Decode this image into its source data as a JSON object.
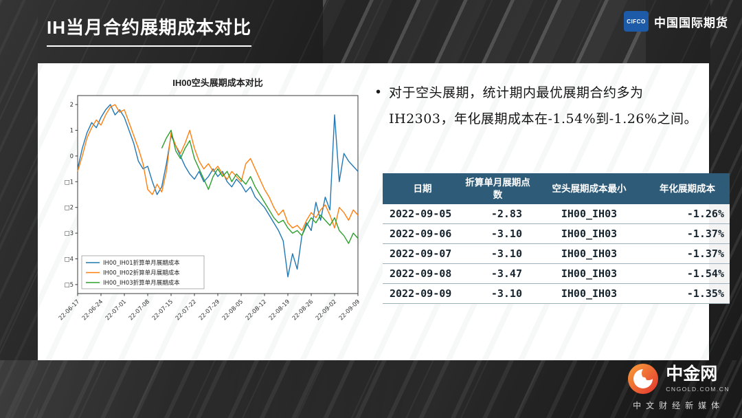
{
  "header": {
    "title": "IH当月合约展期成本对比",
    "brand_mark": "CIFCO",
    "brand_name": "中国国际期货",
    "brand_color": "#1d5aa8"
  },
  "bullet": {
    "marker": "•",
    "line1": "对于空头展期，统计期内最优展期合约多为",
    "line2": "IH2303，年化展期成本在-1.54%到-1.26%之间。"
  },
  "chart_data": {
    "type": "line",
    "title": "IH00空头展期成本对比",
    "xlabel": "",
    "ylabel": "",
    "grid": false,
    "legend_position": "lower left",
    "ylim": [
      -5.35,
      2.35
    ],
    "x_count": 61,
    "x_tick_labels": [
      "22-06-17",
      "22-06-24",
      "22-07-01",
      "22-07-08",
      "22-07-15",
      "22-07-22",
      "22-07-29",
      "22-08-05",
      "22-08-12",
      "22-08-19",
      "22-08-26",
      "22-09-02",
      "22-09-09"
    ],
    "y_ticks": [
      {
        "v": 2,
        "label": "2"
      },
      {
        "v": 1,
        "label": "1"
      },
      {
        "v": 0,
        "label": "0"
      },
      {
        "v": -1,
        "label": "□1"
      },
      {
        "v": -2,
        "label": "□2"
      },
      {
        "v": -3,
        "label": "□3"
      },
      {
        "v": -4,
        "label": "□4"
      },
      {
        "v": -5,
        "label": "□5"
      }
    ],
    "series": [
      {
        "name": "IH00_IH01折算单月展期成本",
        "color": "#1f77b4",
        "values": [
          -0.5,
          0.3,
          0.9,
          1.3,
          1.1,
          1.5,
          1.8,
          2.0,
          1.6,
          1.8,
          1.5,
          1.0,
          0.5,
          -0.2,
          -0.5,
          -0.4,
          -1.0,
          -1.5,
          -1.2,
          -0.3,
          0.8,
          0.4,
          0.0,
          -0.4,
          -0.7,
          -0.9,
          -0.6,
          -1.0,
          -0.8,
          -0.5,
          -0.8,
          -0.6,
          -1.0,
          -1.2,
          -0.9,
          -1.1,
          -1.4,
          -1.2,
          -1.6,
          -1.8,
          -2.0,
          -2.3,
          -2.6,
          -2.9,
          -3.3,
          -4.7,
          -3.8,
          -4.4,
          -3.1,
          -2.6,
          -2.9,
          -1.8,
          -2.5,
          -1.6,
          -2.1,
          1.6,
          -1.0,
          0.1,
          -0.2,
          -0.4,
          -0.6
        ]
      },
      {
        "name": "IH00_IH02折算单月展期成本",
        "color": "#ff7f0e",
        "values": [
          -0.6,
          0.0,
          0.7,
          1.1,
          1.4,
          1.2,
          1.6,
          1.9,
          2.0,
          1.7,
          1.8,
          1.3,
          0.8,
          0.3,
          -0.3,
          -1.3,
          -1.5,
          -1.1,
          -1.4,
          -0.6,
          0.9,
          0.4,
          0.1,
          0.5,
          1.0,
          0.3,
          -0.2,
          -0.5,
          -0.3,
          -0.6,
          -0.4,
          -0.7,
          -0.9,
          -0.6,
          -0.8,
          -1.0,
          -0.3,
          -0.1,
          -0.5,
          -0.9,
          -1.3,
          -1.6,
          -2.0,
          -2.3,
          -2.1,
          -2.6,
          -2.8,
          -2.7,
          -2.9,
          -2.5,
          -2.2,
          -2.4,
          -2.1,
          -1.9,
          -2.3,
          -2.8,
          -2.0,
          -2.2,
          -2.5,
          -2.1,
          -2.3
        ]
      },
      {
        "name": "IH00_IH03折算单月展期成本",
        "color": "#2ca02c",
        "values": [
          null,
          null,
          null,
          null,
          null,
          null,
          null,
          null,
          null,
          null,
          null,
          null,
          null,
          null,
          null,
          null,
          null,
          null,
          0.3,
          0.7,
          1.0,
          0.2,
          -0.1,
          0.3,
          0.6,
          -0.1,
          -0.5,
          -0.9,
          -1.3,
          -0.8,
          -0.5,
          -0.8,
          -0.6,
          -1.0,
          -0.7,
          -0.9,
          -1.1,
          -0.8,
          -1.2,
          -1.5,
          -1.8,
          -2.1,
          -2.4,
          -2.6,
          -2.5,
          -2.8,
          -3.0,
          -2.9,
          -3.1,
          -2.7,
          -2.4,
          -2.6,
          -2.3,
          -2.5,
          -2.7,
          -2.4,
          -2.9,
          -3.1,
          -3.4,
          -3.0,
          -3.2
        ]
      }
    ]
  },
  "table": {
    "header_bg": "#2e5b78",
    "columns": [
      "日期",
      "折算单月展期点数",
      "空头展期成本最小",
      "年化展期成本"
    ],
    "rows": [
      [
        "2022-09-05",
        "-2.83",
        "IH00_IH03",
        "-1.26%"
      ],
      [
        "2022-09-06",
        "-3.10",
        "IH00_IH03",
        "-1.37%"
      ],
      [
        "2022-09-07",
        "-3.10",
        "IH00_IH03",
        "-1.37%"
      ],
      [
        "2022-09-08",
        "-3.47",
        "IH00_IH03",
        "-1.54%"
      ],
      [
        "2022-09-09",
        "-3.10",
        "IH00_IH03",
        "-1.35%"
      ]
    ]
  },
  "footer": {
    "logo_text": "中金网",
    "logo_sub": "CNGOLD.COM.CN",
    "tagline": "中文财经新媒体",
    "logo_colors": [
      "#f9a03a",
      "#e3342f"
    ]
  }
}
